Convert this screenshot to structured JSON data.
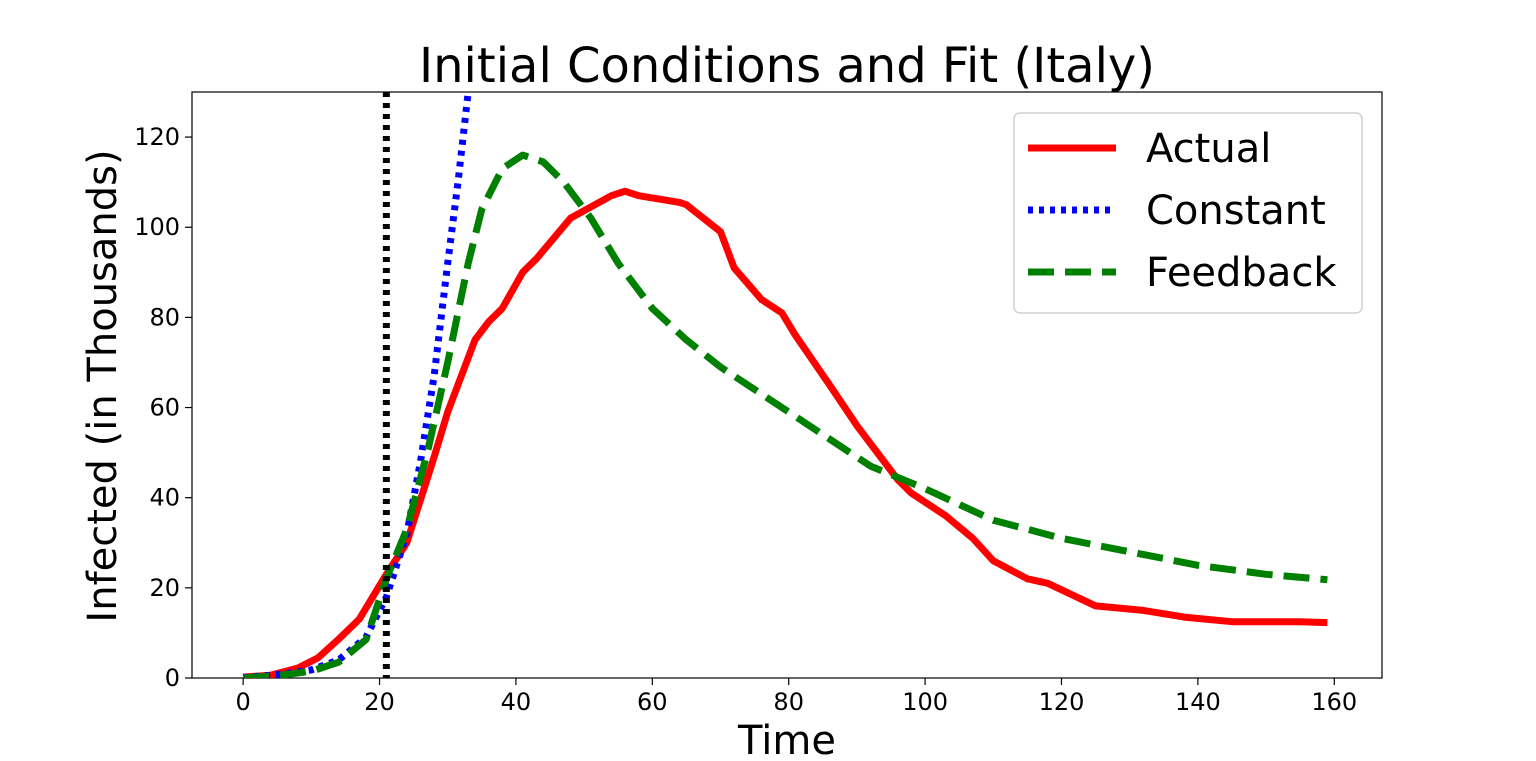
{
  "chart_data": {
    "type": "line",
    "title": "Initial Conditions and Fit (Italy)",
    "xlabel": "Time",
    "ylabel": "Infected (in Thousands)",
    "xlim": [
      -7.5,
      167
    ],
    "ylim": [
      0,
      130
    ],
    "xticks": [
      0,
      20,
      40,
      60,
      80,
      100,
      120,
      140,
      160
    ],
    "yticks": [
      0,
      20,
      40,
      60,
      80,
      100,
      120
    ],
    "grid": false,
    "legend_position": "top-right",
    "vline": {
      "x": 21,
      "color": "#000000",
      "style": "dotted"
    },
    "series": [
      {
        "name": "Actual",
        "color": "#ff0000",
        "style": "solid",
        "x": [
          0,
          4,
          8,
          11,
          14,
          17,
          21,
          24,
          28,
          30,
          34,
          36,
          38,
          41,
          43,
          48,
          51,
          54,
          56,
          58,
          60,
          62,
          64,
          65,
          70,
          72,
          76,
          79,
          81,
          86,
          90,
          92,
          96,
          98,
          103,
          107,
          110,
          115,
          118,
          125,
          132,
          138,
          145,
          150,
          155,
          159
        ],
        "values": [
          0.2,
          0.6,
          2.2,
          4.5,
          8.6,
          13,
          23,
          30,
          49,
          59,
          75,
          79,
          82,
          90,
          93,
          102,
          104.5,
          107,
          108,
          107,
          106.5,
          106,
          105.5,
          105,
          99,
          91,
          84,
          81,
          76,
          65,
          56,
          52,
          44,
          41,
          36,
          31,
          26,
          22,
          21,
          16,
          15,
          13.5,
          12.5,
          12.5,
          12.5,
          12.3
        ]
      },
      {
        "name": "Constant",
        "color": "#0000ff",
        "style": "dotted",
        "x": [
          0,
          5,
          10,
          14,
          18,
          21,
          24,
          26,
          28,
          30,
          31.5,
          33
        ],
        "values": [
          0.1,
          0.7,
          1.8,
          4,
          9,
          18,
          32,
          48,
          67,
          92,
          110,
          130
        ]
      },
      {
        "name": "Feedback",
        "color": "#008000",
        "style": "dashed",
        "x": [
          0,
          5,
          10,
          14,
          18,
          21,
          24,
          27,
          30,
          33,
          35,
          38,
          41,
          44,
          47,
          51,
          55,
          60,
          65,
          70,
          75,
          80,
          86,
          92,
          100,
          110,
          120,
          130,
          140,
          150,
          159
        ],
        "values": [
          0,
          0.5,
          1.5,
          3.5,
          8.5,
          22,
          33,
          50,
          70,
          92,
          104,
          113,
          116,
          114.5,
          110,
          102,
          92,
          82,
          75,
          69,
          64,
          59,
          53,
          47,
          42,
          35,
          31,
          28,
          25,
          23,
          21.8
        ]
      }
    ]
  }
}
